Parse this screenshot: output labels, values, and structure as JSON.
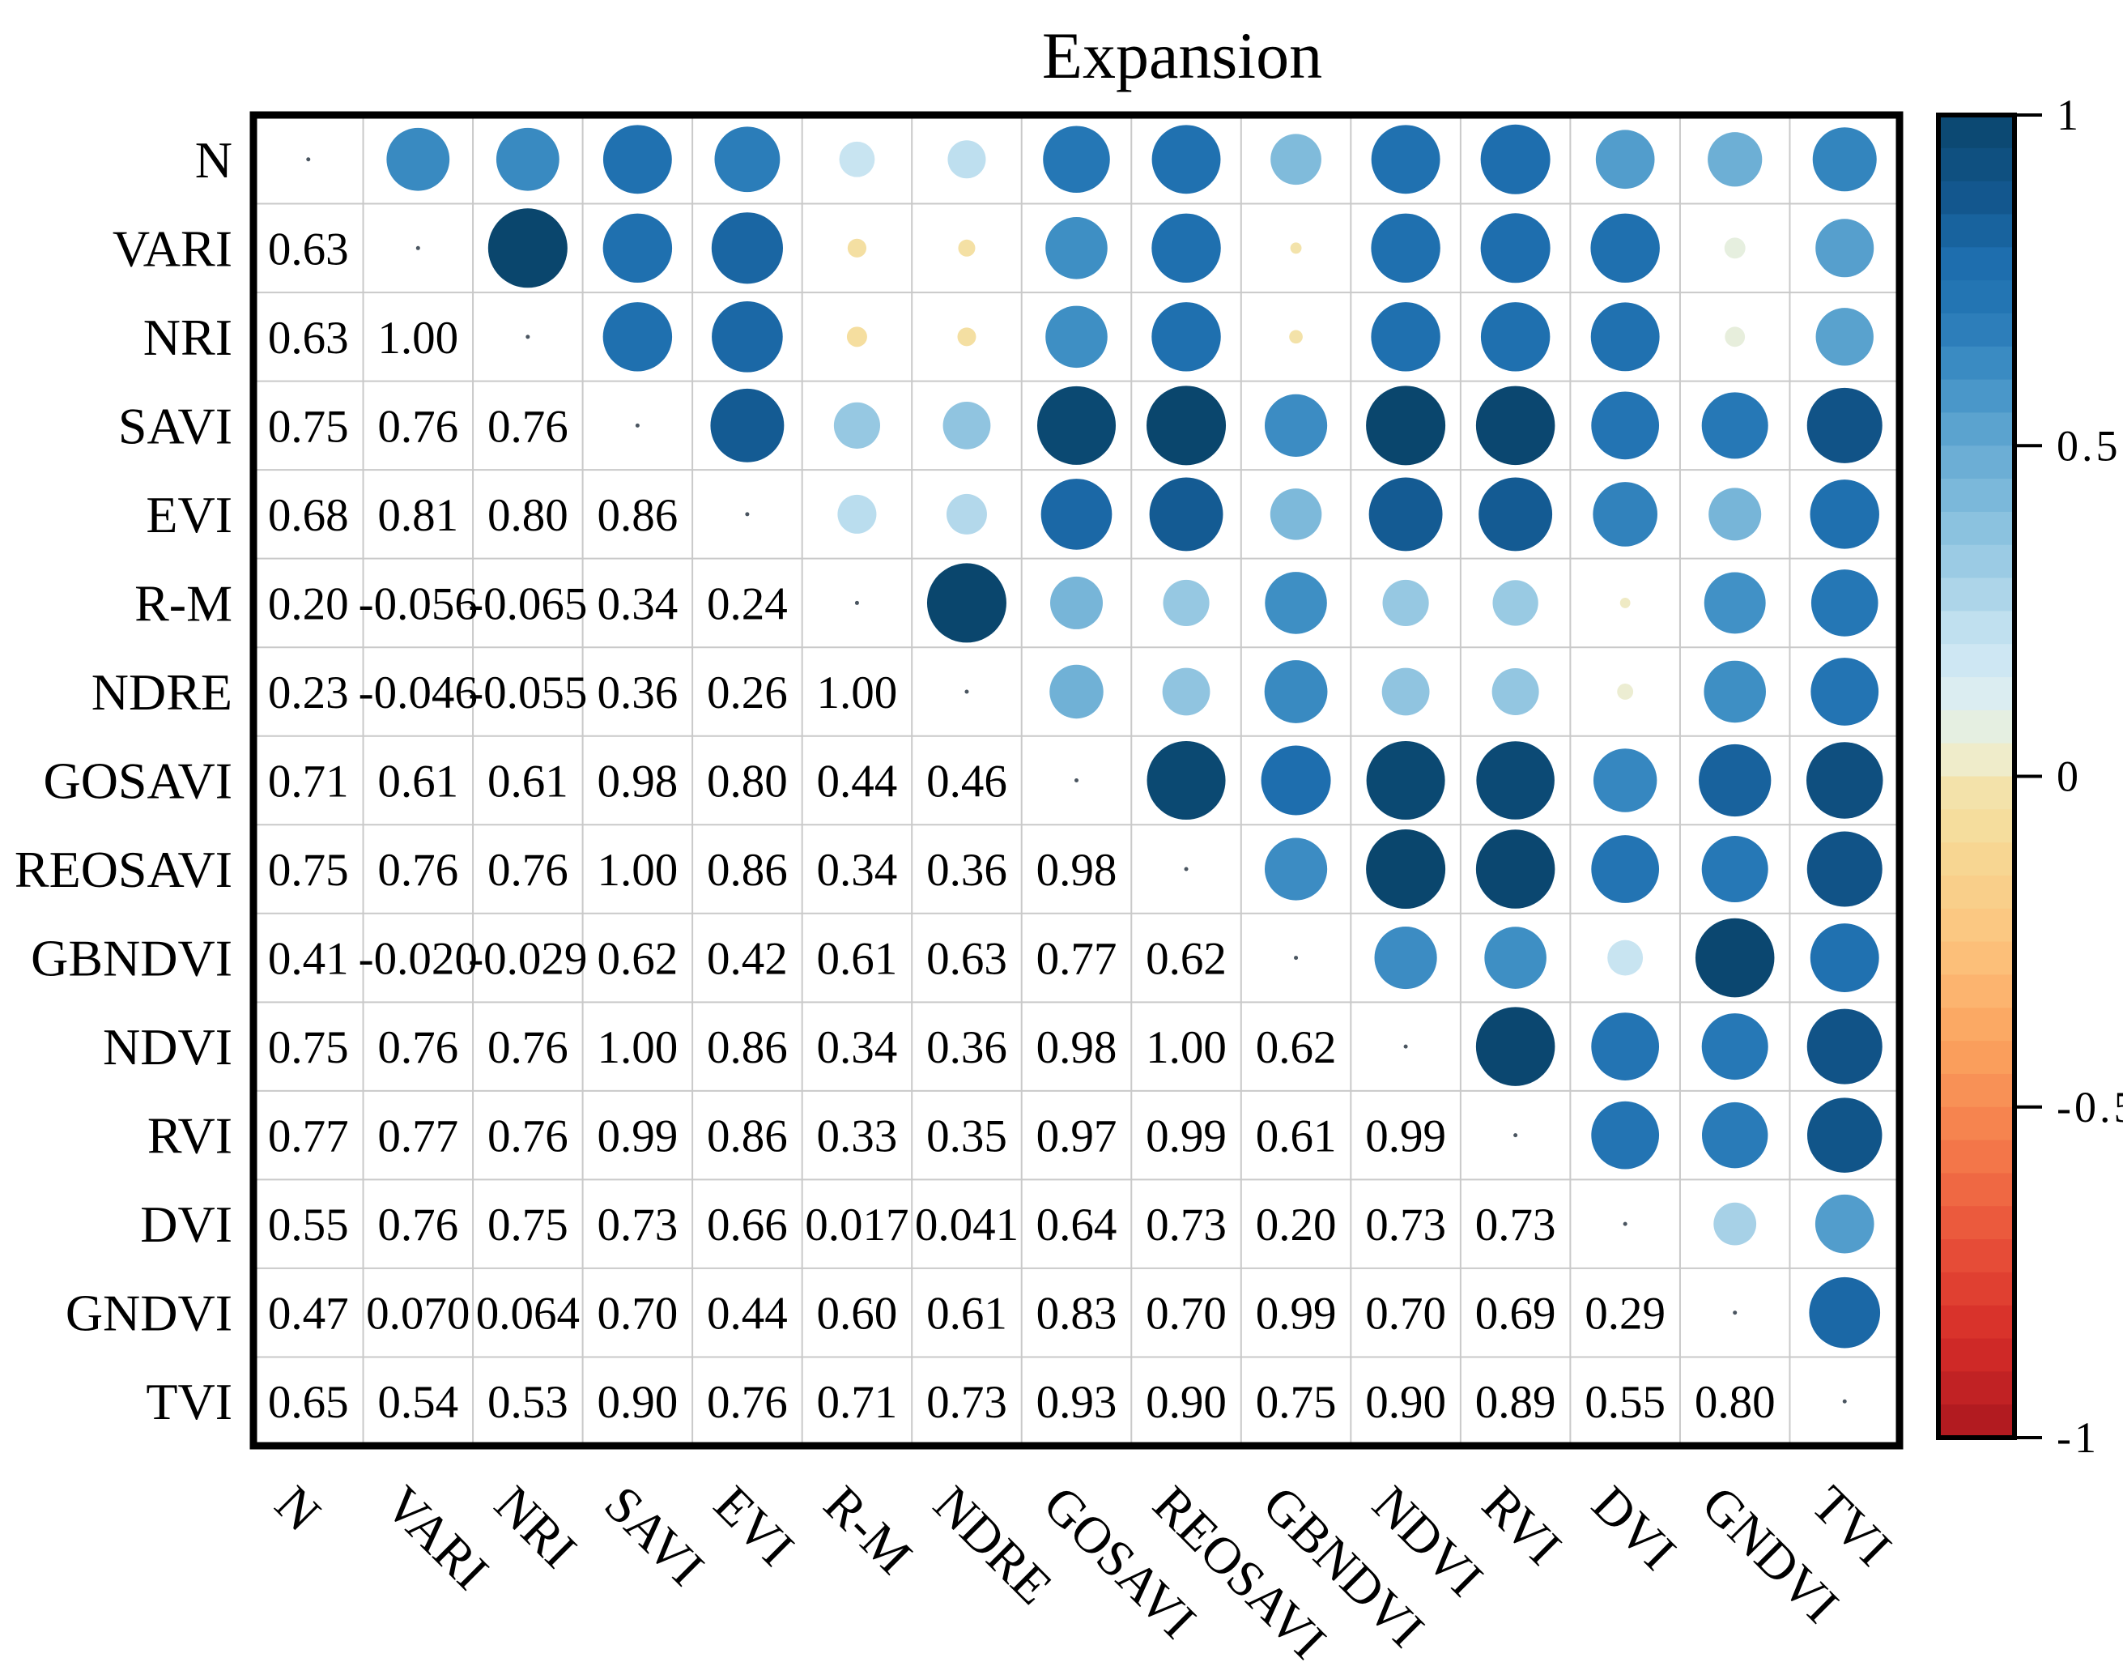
{
  "chart_data": {
    "type": "heatmap",
    "subtype": "correlation-bubble-matrix",
    "title": "Expansion",
    "categories": [
      "N",
      "VARI",
      "NRI",
      "SAVI",
      "EVI",
      "R-M",
      "NDRE",
      "GOSAVI",
      "REOSAVI",
      "GBNDVI",
      "NDVI",
      "RVI",
      "DVI",
      "GNDVI",
      "TVI"
    ],
    "lower_triangle_labels": [
      [
        "0.63"
      ],
      [
        "0.63",
        "1.00"
      ],
      [
        "0.75",
        "0.76",
        "0.76"
      ],
      [
        "0.68",
        "0.81",
        "0.80",
        "0.86"
      ],
      [
        "0.20",
        "-0.056",
        "-0.065",
        "0.34",
        "0.24"
      ],
      [
        "0.23",
        "-0.046",
        "-0.055",
        "0.36",
        "0.26",
        "1.00"
      ],
      [
        "0.71",
        "0.61",
        "0.61",
        "0.98",
        "0.80",
        "0.44",
        "0.46"
      ],
      [
        "0.75",
        "0.76",
        "0.76",
        "1.00",
        "0.86",
        "0.34",
        "0.36",
        "0.98"
      ],
      [
        "0.41",
        "-0.020",
        "-0.029",
        "0.62",
        "0.42",
        "0.61",
        "0.63",
        "0.77",
        "0.62"
      ],
      [
        "0.75",
        "0.76",
        "0.76",
        "1.00",
        "0.86",
        "0.34",
        "0.36",
        "0.98",
        "1.00",
        "0.62"
      ],
      [
        "0.77",
        "0.77",
        "0.76",
        "0.99",
        "0.86",
        "0.33",
        "0.35",
        "0.97",
        "0.99",
        "0.61",
        "0.99"
      ],
      [
        "0.55",
        "0.76",
        "0.75",
        "0.73",
        "0.66",
        "0.017",
        "0.041",
        "0.64",
        "0.73",
        "0.20",
        "0.73",
        "0.73"
      ],
      [
        "0.47",
        "0.070",
        "0.064",
        "0.70",
        "0.44",
        "0.60",
        "0.61",
        "0.83",
        "0.70",
        "0.99",
        "0.70",
        "0.69",
        "0.29"
      ],
      [
        "0.65",
        "0.54",
        "0.53",
        "0.90",
        "0.76",
        "0.71",
        "0.73",
        "0.93",
        "0.90",
        "0.75",
        "0.90",
        "0.89",
        "0.55",
        "0.80"
      ]
    ],
    "upper_triangle": {
      "encoding": "bubbles mirroring lower-triangle values",
      "size_scaling": "diameter proportional to sqrt(|r|)",
      "color_scaling": "colormap over r in [-1,1]"
    },
    "colorbar": {
      "position": "right",
      "ticks": [
        "1",
        "0.5",
        "0",
        "-0.5",
        "-1"
      ],
      "tick_values": [
        1,
        0.5,
        0,
        -0.5,
        -1
      ],
      "range": [
        -1,
        1
      ],
      "bands": 40
    },
    "colors": {
      "grid": "#c9c9c9",
      "border": "#000000",
      "text": "#000000",
      "diagonal_dot": "#4a5560",
      "colormap_stops": [
        [
          1.0,
          "#0a466d"
        ],
        [
          0.88,
          "#12568c"
        ],
        [
          0.78,
          "#1d6dad"
        ],
        [
          0.7,
          "#2678b6"
        ],
        [
          0.6,
          "#4191c6"
        ],
        [
          0.5,
          "#64a9d2"
        ],
        [
          0.4,
          "#83bddc"
        ],
        [
          0.3,
          "#a3cfe6"
        ],
        [
          0.22,
          "#c2e1f0"
        ],
        [
          0.14,
          "#d8ecf5"
        ],
        [
          0.08,
          "#e4efe3"
        ],
        [
          0.03,
          "#eeedcd"
        ],
        [
          -0.02,
          "#f3e3ab"
        ],
        [
          -0.1,
          "#f6da96"
        ],
        [
          -0.25,
          "#fcc47e"
        ],
        [
          -0.4,
          "#fba45f"
        ],
        [
          -0.55,
          "#f57d4c"
        ],
        [
          -0.7,
          "#e9533a"
        ],
        [
          -0.85,
          "#d62c28"
        ],
        [
          -1.0,
          "#ab181f"
        ]
      ]
    },
    "layout": {
      "x_label_rotation_deg": 45,
      "grid": true,
      "values_in": "lower-triangle",
      "bubbles_in": "upper-triangle"
    }
  }
}
